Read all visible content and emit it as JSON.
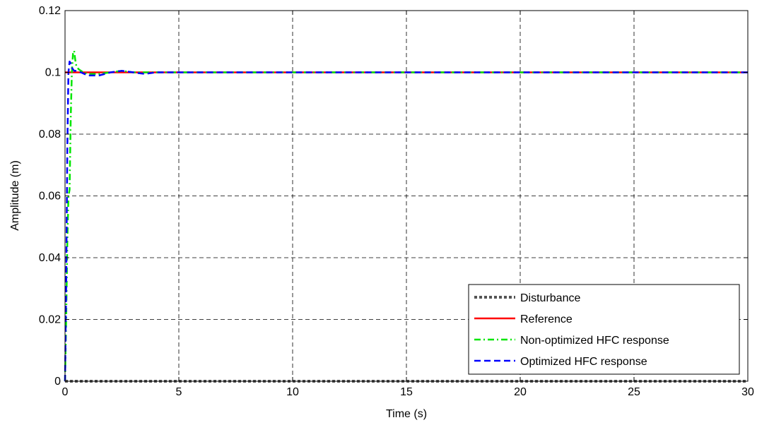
{
  "chart_data": {
    "type": "line",
    "title": "",
    "xlabel": "Time (s)",
    "ylabel": "Amplitude (m)",
    "xlim": [
      0,
      30
    ],
    "ylim": [
      0,
      0.12
    ],
    "grid": true,
    "legend_position": "bottom-right",
    "x_ticks": [
      {
        "value": 0,
        "label": "0"
      },
      {
        "value": 5,
        "label": "5"
      },
      {
        "value": 10,
        "label": "10"
      },
      {
        "value": 15,
        "label": "15"
      },
      {
        "value": 20,
        "label": "20"
      },
      {
        "value": 25,
        "label": "25"
      },
      {
        "value": 30,
        "label": "30"
      }
    ],
    "y_ticks": [
      {
        "value": 0,
        "label": "0"
      },
      {
        "value": 0.02,
        "label": "0.02"
      },
      {
        "value": 0.04,
        "label": "0.04"
      },
      {
        "value": 0.06,
        "label": "0.06"
      },
      {
        "value": 0.08,
        "label": "0.08"
      },
      {
        "value": 0.1,
        "label": "0.1"
      },
      {
        "value": 0.12,
        "label": "0.12"
      }
    ],
    "series": [
      {
        "name": "Disturbance",
        "color": "#555555",
        "style": "dotted",
        "x": [
          0,
          30
        ],
        "y": [
          0,
          0
        ]
      },
      {
        "name": "Reference",
        "color": "#ff0000",
        "style": "solid",
        "x": [
          0,
          30
        ],
        "y": [
          0.1,
          0.1
        ]
      },
      {
        "name": "Non-optimized HFC response",
        "color": "#00e600",
        "style": "dashdot",
        "x": [
          0,
          0.05,
          0.1,
          0.15,
          0.2,
          0.25,
          0.3,
          0.35,
          0.4,
          0.45,
          0.5,
          0.6,
          0.8,
          1.0,
          1.5,
          2.0,
          2.5,
          3.0,
          3.5,
          4.0,
          30
        ],
        "y": [
          0,
          0.02,
          0.045,
          0.06,
          0.062,
          0.085,
          0.1,
          0.106,
          0.107,
          0.104,
          0.102,
          0.101,
          0.1,
          0.0995,
          0.0995,
          0.1,
          0.1005,
          0.1,
          0.1,
          0.1,
          0.1
        ]
      },
      {
        "name": "Optimized HFC response",
        "color": "#0000ff",
        "style": "dashed",
        "x": [
          0,
          0.05,
          0.1,
          0.15,
          0.2,
          0.25,
          0.3,
          0.35,
          0.4,
          0.5,
          0.7,
          1.0,
          1.5,
          2.0,
          2.5,
          3.0,
          3.5,
          4.0,
          30
        ],
        "y": [
          0,
          0.03,
          0.075,
          0.1,
          0.1035,
          0.103,
          0.1015,
          0.101,
          0.1005,
          0.1005,
          0.1,
          0.099,
          0.099,
          0.1,
          0.1005,
          0.1,
          0.0995,
          0.1,
          0.1
        ]
      }
    ]
  }
}
